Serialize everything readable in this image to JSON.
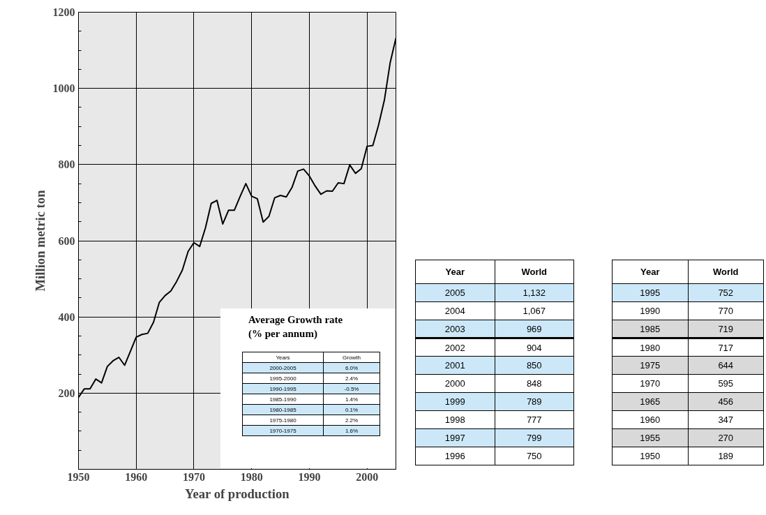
{
  "chart_data": {
    "type": "line",
    "xlabel": "Year of production",
    "ylabel": "Million metric ton",
    "x": [
      1950,
      1951,
      1952,
      1953,
      1954,
      1955,
      1956,
      1957,
      1958,
      1959,
      1960,
      1961,
      1962,
      1963,
      1964,
      1965,
      1966,
      1967,
      1968,
      1969,
      1970,
      1971,
      1972,
      1973,
      1974,
      1975,
      1976,
      1977,
      1978,
      1979,
      1980,
      1981,
      1982,
      1983,
      1984,
      1985,
      1986,
      1987,
      1988,
      1989,
      1990,
      1991,
      1992,
      1993,
      1994,
      1995,
      1996,
      1997,
      1998,
      1999,
      2000,
      2001,
      2002,
      2003,
      2004,
      2005
    ],
    "series": [
      {
        "color": "#000000",
        "values": [
          189,
          211,
          211,
          237,
          227,
          270,
          285,
          294,
          273,
          310,
          347,
          354,
          357,
          386,
          438,
          456,
          468,
          493,
          523,
          572,
          595,
          585,
          634,
          698,
          706,
          644,
          680,
          680,
          716,
          750,
          717,
          710,
          649,
          664,
          713,
          719,
          715,
          740,
          783,
          788,
          770,
          744,
          722,
          731,
          730,
          752,
          750,
          799,
          777,
          789,
          848,
          850,
          904,
          969,
          1067,
          1132
        ]
      }
    ],
    "xlim": [
      1950,
      2005
    ],
    "ylim": [
      0,
      1200
    ],
    "xticks": [
      1950,
      1960,
      1970,
      1980,
      1990,
      2000
    ],
    "yticks": [
      200,
      400,
      600,
      800,
      1000,
      1200
    ],
    "grid": true,
    "marker": "none",
    "line_style": "solid",
    "annotations": [
      "Average  Growth rate\n(% per annum)",
      "Years",
      "Growth",
      "2000-2005",
      "6.0%",
      "1995-2000",
      "2.4%",
      "1990-1995",
      "-0.5%",
      "1985-1990",
      "1.4%",
      "1980-1985",
      "0.1%",
      "1975-1980",
      "2.2%",
      "1970-1975",
      "1.6%",
      "Year",
      "World",
      "2005",
      "1,132",
      "2004",
      "1,067",
      "2003",
      "969",
      "2002",
      "904",
      "2001",
      "850",
      "2000",
      "848",
      "1999",
      "789",
      "1998",
      "777",
      "1997",
      "799",
      "1996",
      "750",
      "Year",
      "World",
      "1995",
      "752",
      "1990",
      "770",
      "1985",
      "719",
      "1980",
      "717",
      "1975",
      "644",
      "1970",
      "595",
      "1965",
      "456",
      "1960",
      "347",
      "1955",
      "270",
      "1950",
      "189"
    ]
  }
}
